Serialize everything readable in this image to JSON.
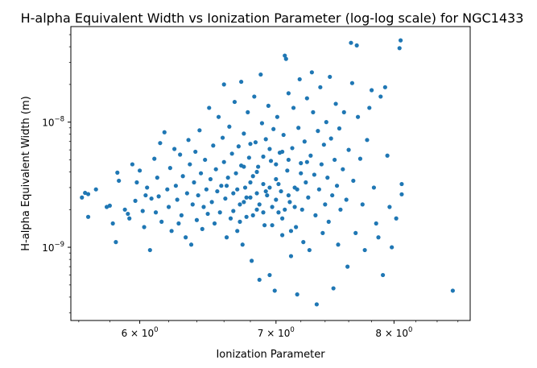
{
  "chart_data": {
    "type": "scatter",
    "title": "H-alpha Equivalent Width vs Ionization Parameter (log-log scale) for NGC1433",
    "xlabel": "Ionization Parameter",
    "ylabel": "H-alpha Equivalent Width (m)",
    "x_scale": "log",
    "y_scale": "log",
    "xlim": [
      5.55,
      8.72
    ],
    "ylim": [
      2.6e-10,
      5.8e-08
    ],
    "x_ticks": [
      {
        "value": 6,
        "base": "6 × 10",
        "exp": "0"
      },
      {
        "value": 7,
        "base": "7 × 10",
        "exp": "0"
      },
      {
        "value": 8,
        "base": "8 × 10",
        "exp": "0"
      }
    ],
    "y_ticks": [
      {
        "value": 1e-09,
        "base": "10",
        "exp": "−9"
      },
      {
        "value": 1e-08,
        "base": "10",
        "exp": "−8"
      }
    ],
    "marker_color": "#1f77b4",
    "grid": false,
    "legend": "none",
    "points": [
      [
        5.62,
        2.5e-09
      ],
      [
        5.64,
        2.72e-09
      ],
      [
        5.66,
        2.66e-09
      ],
      [
        5.66,
        1.75e-09
      ],
      [
        5.71,
        2.9e-09
      ],
      [
        5.78,
        2.1e-09
      ],
      [
        5.8,
        2.15e-09
      ],
      [
        5.82,
        1.55e-09
      ],
      [
        5.84,
        1.1e-09
      ],
      [
        5.85,
        3.95e-09
      ],
      [
        5.86,
        3.4e-09
      ],
      [
        5.9,
        2e-09
      ],
      [
        5.92,
        1.85e-09
      ],
      [
        5.93,
        1.7e-09
      ],
      [
        5.95,
        4.6e-09
      ],
      [
        5.97,
        2.35e-09
      ],
      [
        5.98,
        3.3e-09
      ],
      [
        6.0,
        4.1e-09
      ],
      [
        6.02,
        1.95e-09
      ],
      [
        6.03,
        1.45e-09
      ],
      [
        6.04,
        2.6e-09
      ],
      [
        6.05,
        3e-09
      ],
      [
        6.07,
        9.5e-10
      ],
      [
        6.08,
        2.45e-09
      ],
      [
        6.1,
        5.1e-09
      ],
      [
        6.11,
        1.9e-09
      ],
      [
        6.12,
        3.6e-09
      ],
      [
        6.13,
        2.55e-09
      ],
      [
        6.14,
        6.8e-09
      ],
      [
        6.15,
        1.6e-09
      ],
      [
        6.17,
        8.3e-09
      ],
      [
        6.19,
        2.9e-09
      ],
      [
        6.2,
        2.1e-09
      ],
      [
        6.21,
        4.3e-09
      ],
      [
        6.22,
        1.35e-09
      ],
      [
        6.24,
        6.1e-09
      ],
      [
        6.25,
        3.1e-09
      ],
      [
        6.26,
        2.4e-09
      ],
      [
        6.27,
        1.55e-09
      ],
      [
        6.28,
        5.5e-09
      ],
      [
        6.29,
        1.8e-09
      ],
      [
        6.3,
        3.7e-09
      ],
      [
        6.32,
        1.2e-09
      ],
      [
        6.33,
        2.7e-09
      ],
      [
        6.34,
        7.2e-09
      ],
      [
        6.35,
        4.6e-09
      ],
      [
        6.36,
        1.05e-09
      ],
      [
        6.37,
        2.2e-09
      ],
      [
        6.38,
        3.3e-09
      ],
      [
        6.39,
        5.8e-09
      ],
      [
        6.4,
        1.65e-09
      ],
      [
        6.41,
        2.6e-09
      ],
      [
        6.42,
        8.6e-09
      ],
      [
        6.43,
        3.9e-09
      ],
      [
        6.44,
        1.4e-09
      ],
      [
        6.45,
        2.1e-09
      ],
      [
        6.46,
        5e-09
      ],
      [
        6.47,
        2.9e-09
      ],
      [
        6.48,
        1.85e-09
      ],
      [
        6.49,
        1.3e-08
      ],
      [
        6.5,
        3.5e-09
      ],
      [
        6.51,
        2.3e-09
      ],
      [
        6.52,
        6.5e-09
      ],
      [
        6.53,
        1.55e-09
      ],
      [
        6.54,
        4.2e-09
      ],
      [
        6.55,
        2.8e-09
      ],
      [
        6.56,
        1.1e-08
      ],
      [
        6.57,
        1.9e-09
      ],
      [
        6.58,
        3.1e-09
      ],
      [
        6.59,
        7.5e-09
      ],
      [
        6.6,
        2e-08
      ],
      [
        6.6,
        4.8e-09
      ],
      [
        6.61,
        2.45e-09
      ],
      [
        6.62,
        1.2e-09
      ],
      [
        6.63,
        3.6e-09
      ],
      [
        6.64,
        9.2e-09
      ],
      [
        6.65,
        1.7e-09
      ],
      [
        6.66,
        5.6e-09
      ],
      [
        6.67,
        2.7e-09
      ],
      [
        6.68,
        1.45e-08
      ],
      [
        6.69,
        3.9e-09
      ],
      [
        6.7,
        1.35e-09
      ],
      [
        6.71,
        6.4e-09
      ],
      [
        6.72,
        2.2e-09
      ],
      [
        6.73,
        2.1e-08
      ],
      [
        6.73,
        4.5e-09
      ],
      [
        6.74,
        1.05e-09
      ],
      [
        6.75,
        8.1e-09
      ],
      [
        6.76,
        3e-09
      ],
      [
        6.77,
        1.75e-09
      ],
      [
        6.78,
        1.2e-08
      ],
      [
        6.79,
        5.2e-09
      ],
      [
        6.8,
        2.5e-09
      ],
      [
        6.81,
        7.8e-10
      ],
      [
        6.82,
        3.7e-09
      ],
      [
        6.83,
        1.6e-08
      ],
      [
        6.84,
        6.9e-09
      ],
      [
        6.85,
        2e-09
      ],
      [
        6.86,
        4.4e-09
      ],
      [
        6.87,
        5.5e-10
      ],
      [
        6.88,
        2.4e-08
      ],
      [
        6.89,
        9.8e-09
      ],
      [
        6.9,
        3.2e-09
      ],
      [
        6.91,
        1.5e-09
      ],
      [
        6.92,
        7.3e-09
      ],
      [
        6.93,
        2.6e-09
      ],
      [
        6.94,
        1.35e-08
      ],
      [
        6.95,
        6e-10
      ],
      [
        6.96,
        4.9e-09
      ],
      [
        6.97,
        2.1e-09
      ],
      [
        6.98,
        8.8e-09
      ],
      [
        6.99,
        4.5e-10
      ],
      [
        7.0,
        3.5e-09
      ],
      [
        7.01,
        1.1e-08
      ],
      [
        7.02,
        1.9e-09
      ],
      [
        7.03,
        5.7e-09
      ],
      [
        7.04,
        2.8e-09
      ],
      [
        7.05,
        1.25e-09
      ],
      [
        7.06,
        7.9e-09
      ],
      [
        7.07,
        3.4e-08
      ],
      [
        7.08,
        3.2e-08
      ],
      [
        7.09,
        4.1e-09
      ],
      [
        7.1,
        1.7e-08
      ],
      [
        7.11,
        2.3e-09
      ],
      [
        7.12,
        8.5e-10
      ],
      [
        7.13,
        6.2e-09
      ],
      [
        7.14,
        1.3e-08
      ],
      [
        7.15,
        3e-09
      ],
      [
        7.16,
        1.45e-09
      ],
      [
        7.17,
        4.2e-10
      ],
      [
        7.18,
        9e-09
      ],
      [
        7.19,
        2.2e-08
      ],
      [
        7.2,
        4.7e-09
      ],
      [
        7.21,
        2e-09
      ],
      [
        7.22,
        1.1e-09
      ],
      [
        7.23,
        7e-09
      ],
      [
        7.24,
        3.3e-09
      ],
      [
        7.25,
        1.55e-08
      ],
      [
        7.26,
        2.5e-09
      ],
      [
        7.27,
        9.5e-10
      ],
      [
        7.28,
        5.4e-09
      ],
      [
        7.29,
        2.5e-08
      ],
      [
        7.3,
        1.2e-08
      ],
      [
        7.31,
        3.8e-09
      ],
      [
        7.32,
        1.8e-09
      ],
      [
        7.33,
        3.5e-10
      ],
      [
        7.34,
        8.5e-09
      ],
      [
        7.35,
        2.9e-09
      ],
      [
        7.36,
        1.9e-08
      ],
      [
        7.37,
        4.6e-09
      ],
      [
        7.38,
        1.3e-09
      ],
      [
        7.39,
        6.6e-09
      ],
      [
        7.4,
        2.2e-09
      ],
      [
        7.41,
        1e-08
      ],
      [
        7.42,
        3.6e-09
      ],
      [
        7.43,
        1.6e-09
      ],
      [
        7.44,
        2.3e-08
      ],
      [
        7.45,
        7.4e-09
      ],
      [
        7.46,
        2.6e-09
      ],
      [
        7.47,
        4.7e-10
      ],
      [
        7.48,
        5e-09
      ],
      [
        7.49,
        1.4e-08
      ],
      [
        7.5,
        3.1e-09
      ],
      [
        7.51,
        1.05e-09
      ],
      [
        7.52,
        8.9e-09
      ],
      [
        7.53,
        2e-09
      ],
      [
        7.55,
        4.2e-09
      ],
      [
        7.56,
        1.2e-08
      ],
      [
        7.58,
        2.4e-09
      ],
      [
        7.59,
        7e-10
      ],
      [
        7.6,
        6e-09
      ],
      [
        7.62,
        4.3e-08
      ],
      [
        7.63,
        2.05e-08
      ],
      [
        7.64,
        3.4e-09
      ],
      [
        7.66,
        1.3e-09
      ],
      [
        7.67,
        4.1e-08
      ],
      [
        7.68,
        1.1e-08
      ],
      [
        7.7,
        5.1e-09
      ],
      [
        7.72,
        2.2e-09
      ],
      [
        7.74,
        9.5e-10
      ],
      [
        7.76,
        7.2e-09
      ],
      [
        7.78,
        1.3e-08
      ],
      [
        7.8,
        1.8e-08
      ],
      [
        7.82,
        3e-09
      ],
      [
        7.84,
        1.55e-09
      ],
      [
        7.86,
        1.2e-09
      ],
      [
        7.88,
        1.6e-08
      ],
      [
        7.9,
        6e-10
      ],
      [
        7.92,
        1.9e-08
      ],
      [
        7.94,
        5.4e-09
      ],
      [
        7.96,
        2.1e-09
      ],
      [
        7.98,
        1e-09
      ],
      [
        8.02,
        1.7e-09
      ],
      [
        8.05,
        3.9e-08
      ],
      [
        8.06,
        4.5e-08
      ],
      [
        8.07,
        3.2e-09
      ],
      [
        8.07,
        2.65e-09
      ],
      [
        8.55,
        4.5e-10
      ],
      [
        6.7,
        2.9e-09
      ],
      [
        6.75,
        2.3e-09
      ],
      [
        6.8,
        3.3e-09
      ],
      [
        6.85,
        2.7e-09
      ],
      [
        6.9,
        1.9e-09
      ],
      [
        6.95,
        3e-09
      ],
      [
        7.0,
        2.4e-09
      ],
      [
        7.05,
        1.7e-09
      ],
      [
        7.1,
        2.6e-09
      ],
      [
        7.15,
        2.1e-09
      ],
      [
        6.62,
        3.1e-09
      ],
      [
        6.67,
        1.95e-09
      ],
      [
        6.72,
        1.6e-09
      ],
      [
        6.77,
        2.5e-09
      ],
      [
        6.82,
        1.8e-09
      ],
      [
        6.87,
        2.2e-09
      ],
      [
        6.92,
        2.8e-09
      ],
      [
        6.97,
        1.5e-09
      ],
      [
        7.02,
        3.2e-09
      ],
      [
        7.07,
        2e-09
      ],
      [
        7.12,
        1.35e-09
      ],
      [
        7.17,
        2.9e-09
      ],
      [
        6.85,
        4e-09
      ],
      [
        6.9,
        5.3e-09
      ],
      [
        6.95,
        6.1e-09
      ],
      [
        7.0,
        4.6e-09
      ],
      [
        7.05,
        5.8e-09
      ],
      [
        6.8,
        6.7e-09
      ],
      [
        6.75,
        4.4e-09
      ],
      [
        7.1,
        5e-09
      ],
      [
        7.2,
        3.9e-09
      ],
      [
        7.25,
        4.8e-09
      ]
    ]
  }
}
